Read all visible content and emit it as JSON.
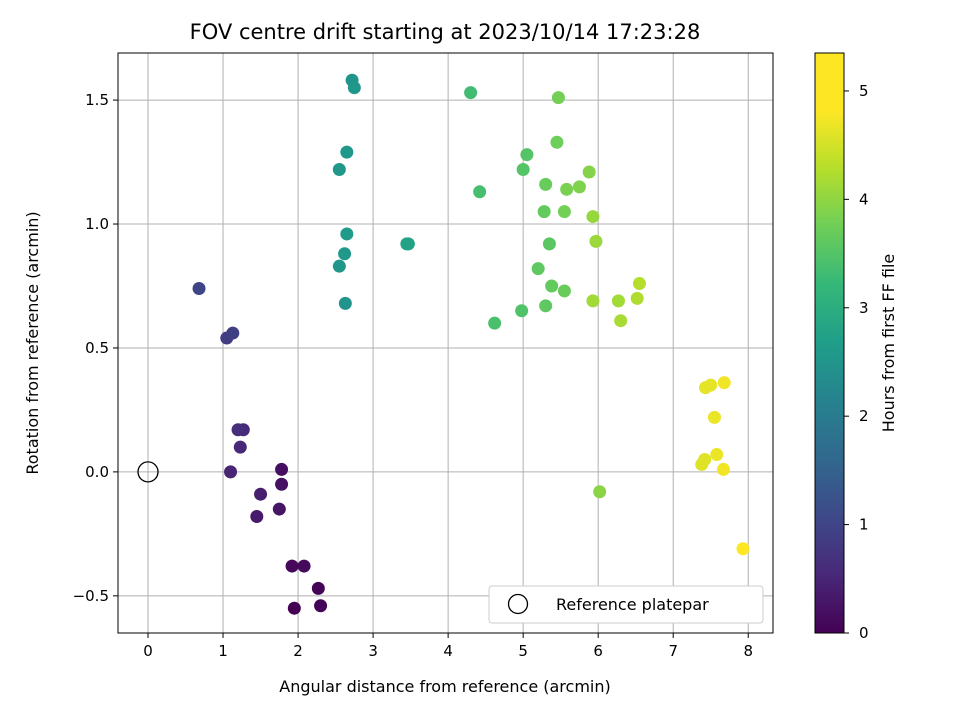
{
  "chart_data": {
    "type": "scatter",
    "title": "FOV centre drift starting at 2023/10/14 17:23:28",
    "xlabel": "Angular distance from reference (arcmin)",
    "ylabel": "Rotation from reference (arcmin)",
    "xlim": [
      -0.4,
      8.33
    ],
    "ylim": [
      -0.65,
      1.69
    ],
    "x_ticks": [
      "0",
      "1",
      "2",
      "3",
      "4",
      "5",
      "6",
      "7",
      "8"
    ],
    "y_ticks": [
      "−0.5",
      "0.0",
      "0.5",
      "1.0",
      "1.5"
    ],
    "grid": true,
    "colormap": "viridis",
    "colorbar": {
      "label": "Hours from first FF file",
      "range": [
        0,
        5.35
      ],
      "ticks": [
        "0",
        "1",
        "2",
        "3",
        "4",
        "5"
      ]
    },
    "legend": {
      "entries": [
        "Reference platepar"
      ],
      "placement": "lower-right"
    },
    "reference_point": {
      "x": 0,
      "y": 0,
      "marker": "hollow-circle",
      "color": "#000000"
    },
    "series": [
      {
        "color_by": "hours",
        "points": [
          {
            "x": 1.95,
            "y": -0.55,
            "c": 0.0
          },
          {
            "x": 2.3,
            "y": -0.54,
            "c": 0.03
          },
          {
            "x": 2.27,
            "y": -0.47,
            "c": 0.06
          },
          {
            "x": 1.92,
            "y": -0.38,
            "c": 0.1
          },
          {
            "x": 2.08,
            "y": -0.38,
            "c": 0.13
          },
          {
            "x": 1.78,
            "y": 0.01,
            "c": 0.2
          },
          {
            "x": 1.78,
            "y": -0.05,
            "c": 0.25
          },
          {
            "x": 1.75,
            "y": -0.15,
            "c": 0.3
          },
          {
            "x": 1.45,
            "y": -0.18,
            "c": 0.38
          },
          {
            "x": 1.5,
            "y": -0.09,
            "c": 0.45
          },
          {
            "x": 1.1,
            "y": 0.0,
            "c": 0.55
          },
          {
            "x": 1.23,
            "y": 0.1,
            "c": 0.6
          },
          {
            "x": 1.27,
            "y": 0.17,
            "c": 0.65
          },
          {
            "x": 1.2,
            "y": 0.17,
            "c": 0.7
          },
          {
            "x": 1.05,
            "y": 0.54,
            "c": 0.95
          },
          {
            "x": 1.13,
            "y": 0.56,
            "c": 1.0
          },
          {
            "x": 0.68,
            "y": 0.74,
            "c": 1.1
          },
          {
            "x": 2.63,
            "y": 0.68,
            "c": 2.75
          },
          {
            "x": 2.55,
            "y": 0.83,
            "c": 2.8
          },
          {
            "x": 2.62,
            "y": 0.88,
            "c": 2.85
          },
          {
            "x": 2.65,
            "y": 0.96,
            "c": 2.9
          },
          {
            "x": 2.55,
            "y": 1.22,
            "c": 2.82
          },
          {
            "x": 2.65,
            "y": 1.29,
            "c": 2.87
          },
          {
            "x": 2.72,
            "y": 1.58,
            "c": 2.78
          },
          {
            "x": 2.75,
            "y": 1.55,
            "c": 2.8
          },
          {
            "x": 3.45,
            "y": 0.92,
            "c": 3.05
          },
          {
            "x": 3.47,
            "y": 0.92,
            "c": 3.08
          },
          {
            "x": 4.3,
            "y": 1.53,
            "c": 3.7
          },
          {
            "x": 4.42,
            "y": 1.13,
            "c": 3.75
          },
          {
            "x": 4.62,
            "y": 0.6,
            "c": 3.8
          },
          {
            "x": 4.98,
            "y": 0.65,
            "c": 3.85
          },
          {
            "x": 5.0,
            "y": 1.22,
            "c": 3.9
          },
          {
            "x": 5.05,
            "y": 1.28,
            "c": 3.9
          },
          {
            "x": 5.2,
            "y": 0.82,
            "c": 4.0
          },
          {
            "x": 5.3,
            "y": 0.67,
            "c": 4.0
          },
          {
            "x": 5.35,
            "y": 0.92,
            "c": 3.95
          },
          {
            "x": 5.38,
            "y": 0.75,
            "c": 4.05
          },
          {
            "x": 5.28,
            "y": 1.05,
            "c": 4.05
          },
          {
            "x": 5.3,
            "y": 1.16,
            "c": 4.1
          },
          {
            "x": 5.45,
            "y": 1.33,
            "c": 4.15
          },
          {
            "x": 5.47,
            "y": 1.51,
            "c": 4.2
          },
          {
            "x": 5.55,
            "y": 0.73,
            "c": 4.1
          },
          {
            "x": 5.55,
            "y": 1.05,
            "c": 4.2
          },
          {
            "x": 5.58,
            "y": 1.14,
            "c": 4.25
          },
          {
            "x": 5.75,
            "y": 1.15,
            "c": 4.3
          },
          {
            "x": 5.88,
            "y": 1.21,
            "c": 4.35
          },
          {
            "x": 5.93,
            "y": 1.03,
            "c": 4.5
          },
          {
            "x": 5.97,
            "y": 0.93,
            "c": 4.55
          },
          {
            "x": 5.93,
            "y": 0.69,
            "c": 4.6
          },
          {
            "x": 6.02,
            "y": -0.08,
            "c": 4.4
          },
          {
            "x": 6.27,
            "y": 0.69,
            "c": 4.6
          },
          {
            "x": 6.3,
            "y": 0.61,
            "c": 4.65
          },
          {
            "x": 6.52,
            "y": 0.7,
            "c": 4.7
          },
          {
            "x": 6.55,
            "y": 0.76,
            "c": 4.75
          },
          {
            "x": 7.38,
            "y": 0.03,
            "c": 5.1
          },
          {
            "x": 7.42,
            "y": 0.05,
            "c": 5.1
          },
          {
            "x": 7.43,
            "y": 0.34,
            "c": 5.15
          },
          {
            "x": 7.5,
            "y": 0.35,
            "c": 5.15
          },
          {
            "x": 7.55,
            "y": 0.22,
            "c": 5.2
          },
          {
            "x": 7.58,
            "y": 0.07,
            "c": 5.2
          },
          {
            "x": 7.67,
            "y": 0.01,
            "c": 5.25
          },
          {
            "x": 7.68,
            "y": 0.36,
            "c": 5.25
          },
          {
            "x": 7.93,
            "y": -0.31,
            "c": 5.35
          }
        ]
      }
    ]
  }
}
